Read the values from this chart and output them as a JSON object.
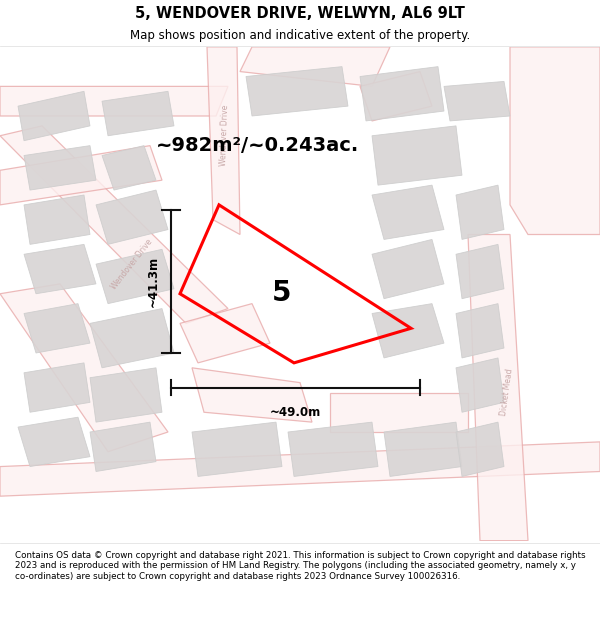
{
  "title": "5, WENDOVER DRIVE, WELWYN, AL6 9LT",
  "subtitle": "Map shows position and indicative extent of the property.",
  "area_text": "~982m²/~0.243ac.",
  "width_label": "~49.0m",
  "height_label": "~41.3m",
  "property_number": "5",
  "footer": "Contains OS data © Crown copyright and database right 2021. This information is subject to Crown copyright and database rights 2023 and is reproduced with the permission of HM Land Registry. The polygons (including the associated geometry, namely x, y co-ordinates) are subject to Crown copyright and database rights 2023 Ordnance Survey 100026316.",
  "background_color": "#ffffff",
  "map_bg": "#ffffff",
  "road_color": "#e8aaaa",
  "building_color": "#d8d4d4",
  "building_edge": "#cccccc",
  "property_outline_color": "#ff0000",
  "dim_line_color": "#111111",
  "title_color": "#000000",
  "footer_color": "#000000",
  "figsize": [
    6.0,
    6.25
  ],
  "dpi": 100
}
